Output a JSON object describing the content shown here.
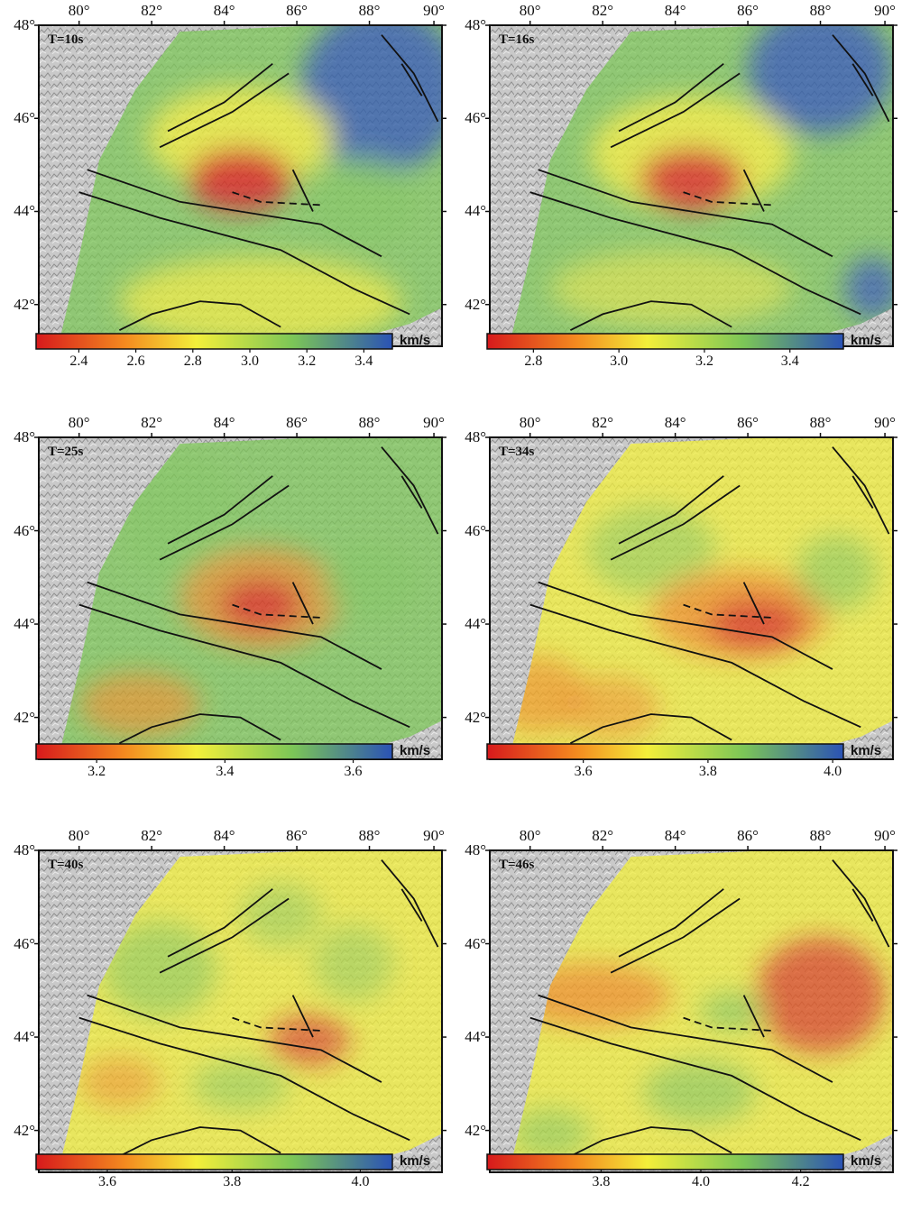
{
  "colors": {
    "very_low": "#d7191c",
    "low": "#f48a1f",
    "mid": "#f3ef3a",
    "high": "#7cc657",
    "very_high": "#2a52b5",
    "relief": "#c9c9c9",
    "faults": "#111111"
  },
  "panels": [
    {
      "period_label": "T=10s",
      "colorbar_ticks": [
        "2.4",
        "2.6",
        "2.8",
        "3.0",
        "3.2",
        "3.4"
      ],
      "unit": "km/s"
    },
    {
      "period_label": "T=16s",
      "colorbar_ticks": [
        "2.8",
        "3.0",
        "3.2",
        "3.4"
      ],
      "unit": "km/s"
    },
    {
      "period_label": "T=25s",
      "colorbar_ticks": [
        "3.2",
        "3.4",
        "3.6"
      ],
      "unit": "km/s"
    },
    {
      "period_label": "T=34s",
      "colorbar_ticks": [
        "3.6",
        "3.8",
        "4.0"
      ],
      "unit": "km/s"
    },
    {
      "period_label": "T=40s",
      "colorbar_ticks": [
        "3.6",
        "3.8",
        "4.0"
      ],
      "unit": "km/s"
    },
    {
      "period_label": "T=46s",
      "colorbar_ticks": [
        "3.8",
        "4.0",
        "4.2"
      ],
      "unit": "km/s"
    }
  ],
  "axes": {
    "lon_labels": [
      "80°",
      "82°",
      "84°",
      "86°",
      "88°",
      "90°"
    ],
    "lat_labels": [
      "48°",
      "46°",
      "44°",
      "42°"
    ]
  }
}
